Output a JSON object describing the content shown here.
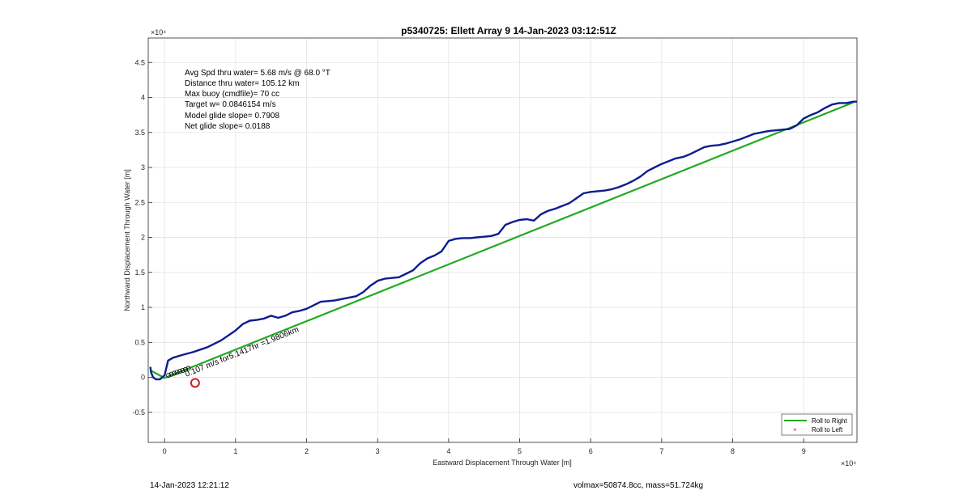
{
  "chart_data": {
    "type": "line",
    "title": "p5340725: Ellett Array 9 14-Jan-2023 03:12:51Z",
    "xlabel": "Eastward Displacement Through Water [m]",
    "ylabel": "Northward Displacement Through Water [m]",
    "x_exponent": "×10⁴",
    "y_exponent": "×10⁴",
    "xlim": [
      -2300,
      97500
    ],
    "ylim": [
      -9300,
      48500
    ],
    "xticks": [
      0,
      10000,
      20000,
      30000,
      40000,
      50000,
      60000,
      70000,
      80000,
      90000
    ],
    "xtick_labels": [
      "0",
      "1",
      "2",
      "3",
      "4",
      "5",
      "6",
      "7",
      "8",
      "9"
    ],
    "yticks": [
      -5000,
      0,
      5000,
      10000,
      15000,
      20000,
      25000,
      30000,
      35000,
      40000,
      45000
    ],
    "ytick_labels": [
      "-0.5",
      "0",
      "0.5",
      "1",
      "1.5",
      "2",
      "2.5",
      "3",
      "3.5",
      "4",
      "4.5"
    ],
    "grid": true,
    "annotations": [
      "Avg Spd thru water=  5.68 m/s @  68.0 °T",
      "Distance thru water= 105.12 km",
      "Max buoy (cmdfile)= 70 cc",
      "Target w= 0.0846154 m/s",
      "Model glide slope= 0.7908",
      "Net glide slope= 0.0188"
    ],
    "rotated_label": "0.107 m/s for5.1417hr =1.9806km",
    "legend": {
      "placement": "bottom-right",
      "entries": [
        {
          "label": "Roll to Right",
          "color": "#22aa22",
          "marker": "line"
        },
        {
          "label": "Roll to Left",
          "color": "#cc2222",
          "marker": "x"
        }
      ]
    },
    "series": [
      {
        "color": "#22aa22",
        "x": [
          -2000,
          0,
          97000
        ],
        "y": [
          1000,
          -100,
          39300
        ]
      },
      {
        "color": "#0d1d8f",
        "x": [
          -2000,
          -1900,
          -1600,
          -1200,
          -700,
          -300,
          0,
          500,
          1200,
          2500,
          4000,
          6000,
          8000,
          10000,
          11000,
          12000,
          13000,
          14000,
          15000,
          16000,
          17000,
          18000,
          19000,
          20000,
          21000,
          22000,
          23000,
          24000,
          25000,
          26000,
          27000,
          28000,
          29000,
          30000,
          31000,
          32000,
          33000,
          34000,
          35000,
          36000,
          37000,
          38000,
          39000,
          40000,
          41000,
          42000,
          43000,
          44000,
          45000,
          46000,
          47000,
          48000,
          49000,
          50000,
          51000,
          52000,
          53000,
          54000,
          55000,
          56000,
          57000,
          58000,
          59000,
          60000,
          61000,
          62000,
          63000,
          64000,
          65000,
          66000,
          67000,
          68000,
          69000,
          70000,
          71000,
          72000,
          73000,
          74000,
          75000,
          76000,
          77000,
          78000,
          79000,
          80000,
          81000,
          82000,
          83000,
          84000,
          85000,
          86000,
          87000,
          88000,
          89000,
          90000,
          91000,
          92000,
          93000,
          94000,
          95000,
          96000,
          97000,
          97500
        ],
        "y": [
          1500,
          700,
          0,
          -300,
          -300,
          0,
          300,
          2400,
          2800,
          3200,
          3600,
          4300,
          5300,
          6700,
          7600,
          8100,
          8200,
          8400,
          8800,
          8500,
          8800,
          9300,
          9500,
          9800,
          10300,
          10800,
          10900,
          11000,
          11200,
          11400,
          11600,
          12200,
          13100,
          13800,
          14100,
          14200,
          14300,
          14800,
          15300,
          16300,
          17000,
          17400,
          18000,
          19500,
          19800,
          19900,
          19900,
          20000,
          20100,
          20200,
          20500,
          21800,
          22200,
          22500,
          22600,
          22400,
          23300,
          23800,
          24100,
          24500,
          24900,
          25600,
          26300,
          26500,
          26600,
          26700,
          26900,
          27200,
          27600,
          28100,
          28700,
          29500,
          30000,
          30500,
          30900,
          31300,
          31500,
          31900,
          32400,
          32900,
          33100,
          33200,
          33400,
          33700,
          34000,
          34400,
          34800,
          35000,
          35200,
          35300,
          35400,
          35500,
          36000,
          37000,
          37500,
          37900,
          38500,
          39000,
          39200,
          39200,
          39400,
          39400
        ]
      }
    ],
    "markers": [
      {
        "type": "circle",
        "color": "#cc2222",
        "x": 4300,
        "y": -800
      },
      {
        "type": "cluster",
        "color": "#000000",
        "x": 900,
        "y": 300
      }
    ]
  },
  "footer": {
    "left": "14-Jan-2023 12:21:12",
    "right": "volmax=50874.8cc, mass=51.724kg"
  }
}
